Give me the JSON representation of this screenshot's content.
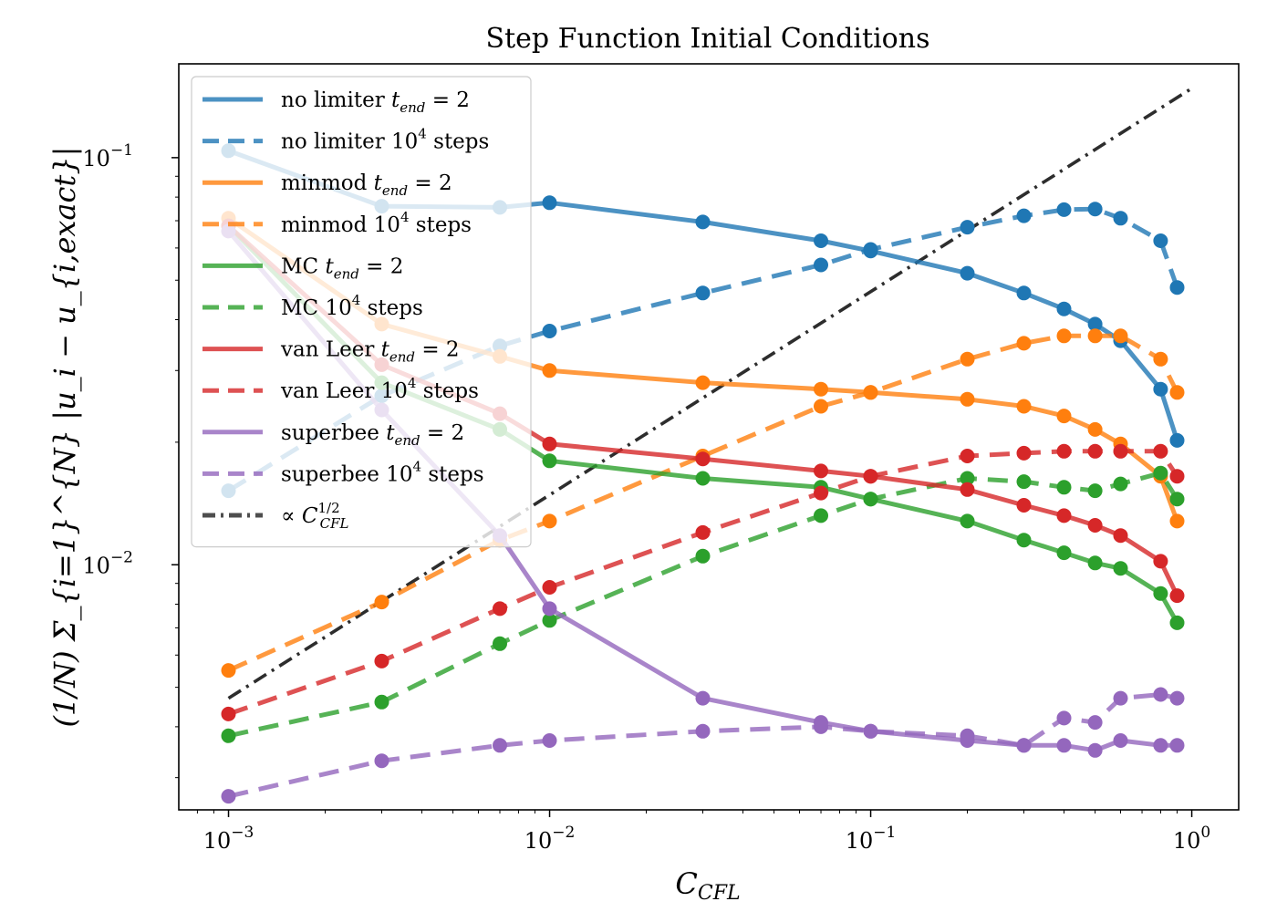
{
  "chart_data": {
    "type": "line",
    "title": "Step Function Initial Conditions",
    "xlabel_main": "C",
    "xlabel_sub": "CFL",
    "ylabel": "(1/N) Σ_{i=1}^{N} |u_i − u_{i,exact}|",
    "xscale": "log",
    "yscale": "log",
    "xlim": [
      0.0007,
      1.4
    ],
    "ylim": [
      0.0025,
      0.17
    ],
    "x_ticks": [
      {
        "value": 0.001,
        "base": "10",
        "exp": "−3"
      },
      {
        "value": 0.01,
        "base": "10",
        "exp": "−2"
      },
      {
        "value": 0.1,
        "base": "10",
        "exp": "−1"
      },
      {
        "value": 1,
        "base": "10",
        "exp": "0"
      }
    ],
    "y_ticks": [
      {
        "value": 0.01,
        "base": "10",
        "exp": "−2"
      },
      {
        "value": 0.1,
        "base": "10",
        "exp": "−1"
      }
    ],
    "x": [
      0.001,
      0.003,
      0.007,
      0.01,
      0.03,
      0.07,
      0.1,
      0.2,
      0.3,
      0.4,
      0.5,
      0.6,
      0.8,
      0.9
    ],
    "series": [
      {
        "name": "no limiter",
        "kind": "t_end",
        "color": "#1f77b4",
        "dash": "solid",
        "values": [
          0.104,
          0.076,
          0.0755,
          0.0775,
          0.0695,
          0.0625,
          0.059,
          0.052,
          0.0465,
          0.0425,
          0.039,
          0.0355,
          0.027,
          0.0202
        ]
      },
      {
        "name": "no limiter",
        "kind": "steps",
        "color": "#1f77b4",
        "dash": "dashed",
        "values": [
          0.0152,
          0.026,
          0.0345,
          0.0375,
          0.0465,
          0.0545,
          0.0595,
          0.0675,
          0.072,
          0.0745,
          0.0748,
          0.071,
          0.0625,
          0.048
        ]
      },
      {
        "name": "minmod",
        "kind": "t_end",
        "color": "#ff7f0e",
        "dash": "solid",
        "values": [
          0.071,
          0.039,
          0.0325,
          0.03,
          0.028,
          0.027,
          0.0265,
          0.0255,
          0.0245,
          0.0232,
          0.0215,
          0.0198,
          0.0165,
          0.0128
        ]
      },
      {
        "name": "minmod",
        "kind": "steps",
        "color": "#ff7f0e",
        "dash": "dashed",
        "values": [
          0.0055,
          0.0081,
          0.0115,
          0.0128,
          0.0185,
          0.0245,
          0.0265,
          0.032,
          0.035,
          0.0365,
          0.0365,
          0.0365,
          0.032,
          0.0265
        ]
      },
      {
        "name": "MC",
        "kind": "t_end",
        "color": "#2ca02c",
        "dash": "solid",
        "values": [
          0.068,
          0.028,
          0.0215,
          0.018,
          0.0163,
          0.0155,
          0.0145,
          0.0128,
          0.0115,
          0.0107,
          0.0101,
          0.0098,
          0.0085,
          0.0072
        ]
      },
      {
        "name": "MC",
        "kind": "steps",
        "color": "#2ca02c",
        "dash": "dashed",
        "values": [
          0.0038,
          0.0046,
          0.0064,
          0.0073,
          0.0105,
          0.0132,
          0.0145,
          0.0163,
          0.016,
          0.0155,
          0.0152,
          0.0158,
          0.0168,
          0.0145
        ]
      },
      {
        "name": "van Leer",
        "kind": "t_end",
        "color": "#d62728",
        "dash": "solid",
        "values": [
          0.068,
          0.031,
          0.0235,
          0.0198,
          0.0182,
          0.017,
          0.0165,
          0.0153,
          0.014,
          0.0132,
          0.0125,
          0.0118,
          0.0102,
          0.0084
        ]
      },
      {
        "name": "van Leer",
        "kind": "steps",
        "color": "#d62728",
        "dash": "dashed",
        "values": [
          0.0043,
          0.0058,
          0.0078,
          0.0088,
          0.012,
          0.015,
          0.0165,
          0.0185,
          0.0188,
          0.019,
          0.019,
          0.019,
          0.019,
          0.0165
        ]
      },
      {
        "name": "superbee",
        "kind": "t_end",
        "color": "#9467bd",
        "dash": "solid",
        "values": [
          0.066,
          0.024,
          0.0118,
          0.0078,
          0.0047,
          0.0041,
          0.0039,
          0.0037,
          0.0036,
          0.0036,
          0.0035,
          0.0037,
          0.0036,
          0.0036
        ]
      },
      {
        "name": "superbee",
        "kind": "steps",
        "color": "#9467bd",
        "dash": "dashed",
        "values": [
          0.0027,
          0.0033,
          0.0036,
          0.0037,
          0.0039,
          0.004,
          0.0039,
          0.0038,
          0.0036,
          0.0042,
          0.0041,
          0.0047,
          0.0048,
          0.0047
        ]
      }
    ],
    "reference": {
      "name": "∝ C_CFL^{1/2}",
      "color": "#222222",
      "dash": "dashdot",
      "x": [
        0.001,
        1
      ],
      "y": [
        0.0047,
        0.148
      ]
    },
    "legend": {
      "placement": "upper-left",
      "entries": [
        {
          "color": "#1f77b4",
          "dash": "solid",
          "prefix": "no limiter ",
          "math": "t",
          "sub": "end",
          "tail": " = 2"
        },
        {
          "color": "#1f77b4",
          "dash": "dashed",
          "prefix": "no limiter 10",
          "math": "",
          "sup": "4",
          "tail": " steps"
        },
        {
          "color": "#ff7f0e",
          "dash": "solid",
          "prefix": "minmod ",
          "math": "t",
          "sub": "end",
          "tail": " = 2"
        },
        {
          "color": "#ff7f0e",
          "dash": "dashed",
          "prefix": "minmod 10",
          "math": "",
          "sup": "4",
          "tail": " steps"
        },
        {
          "color": "#2ca02c",
          "dash": "solid",
          "prefix": "MC ",
          "math": "t",
          "sub": "end",
          "tail": " = 2"
        },
        {
          "color": "#2ca02c",
          "dash": "dashed",
          "prefix": "MC 10",
          "math": "",
          "sup": "4",
          "tail": " steps"
        },
        {
          "color": "#d62728",
          "dash": "solid",
          "prefix": "van Leer ",
          "math": "t",
          "sub": "end",
          "tail": " = 2"
        },
        {
          "color": "#d62728",
          "dash": "dashed",
          "prefix": "van Leer 10",
          "math": "",
          "sup": "4",
          "tail": " steps"
        },
        {
          "color": "#9467bd",
          "dash": "solid",
          "prefix": "superbee ",
          "math": "t",
          "sub": "end",
          "tail": " = 2"
        },
        {
          "color": "#9467bd",
          "dash": "dashed",
          "prefix": "superbee 10",
          "math": "",
          "sup": "4",
          "tail": " steps"
        },
        {
          "color": "#222222",
          "dash": "dashdot",
          "prefix": "∝ ",
          "math": "C",
          "sub": "CFL",
          "sup": "1/2",
          "tail": ""
        }
      ]
    }
  }
}
